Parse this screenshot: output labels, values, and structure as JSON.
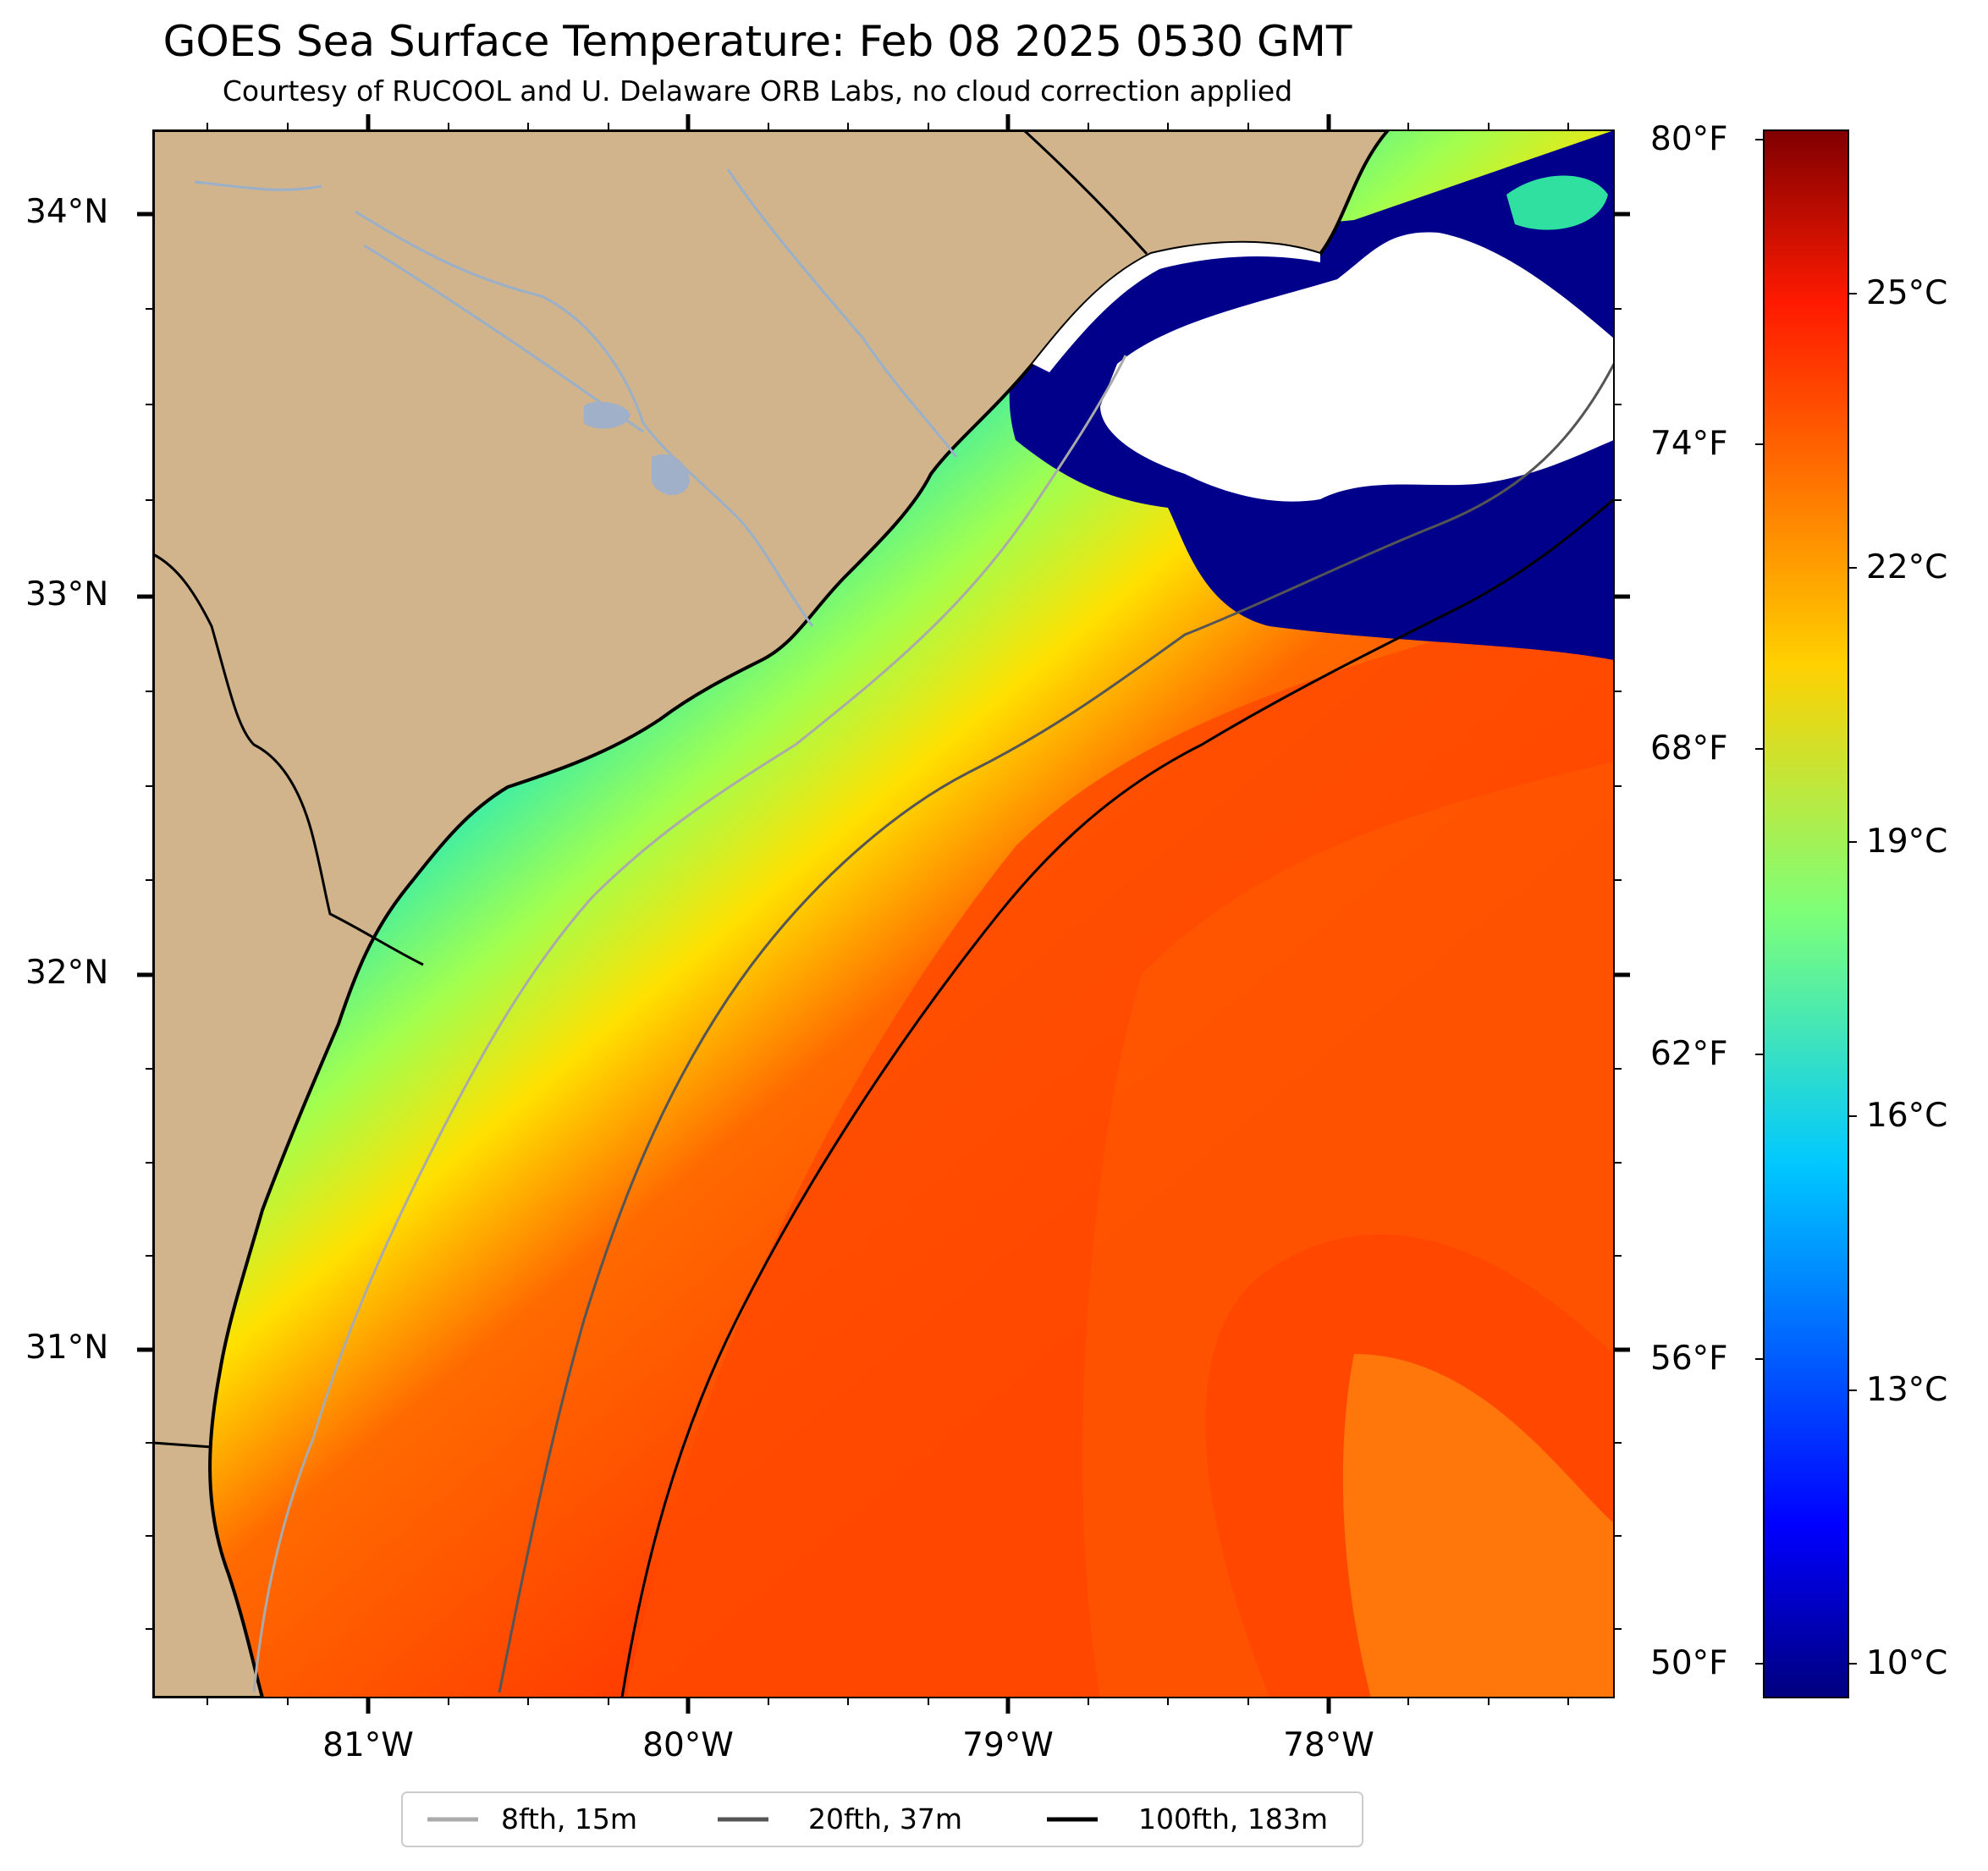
{
  "title": "GOES Sea Surface Temperature: Feb 08 2025 0530 GMT",
  "subtitle": "Courtesy of RUCOOL and U. Delaware ORB Labs, no cloud correction applied",
  "map": {
    "lat_labels": [
      "34°N",
      "33°N",
      "32°N",
      "31°N"
    ],
    "lon_labels": [
      "81°W",
      "80°W",
      "79°W",
      "78°W"
    ],
    "colors": {
      "land": "#d2b48c",
      "coastline": "#000000",
      "river": "#9ab0c8",
      "cloud": "#ffffff",
      "cold": "#00008b"
    }
  },
  "colorbar": {
    "f_labels": [
      "80°F",
      "74°F",
      "68°F",
      "62°F",
      "56°F",
      "50°F"
    ],
    "c_labels": [
      "25°C",
      "22°C",
      "19°C",
      "16°C",
      "13°C",
      "10°C"
    ],
    "range_c": [
      9.5,
      26.7
    ]
  },
  "legend": {
    "items": [
      {
        "label": "8fth, 15m",
        "color": "#aaaaaa"
      },
      {
        "label": "20fth, 37m",
        "color": "#555555"
      },
      {
        "label": "100fth, 183m",
        "color": "#000000"
      }
    ]
  }
}
